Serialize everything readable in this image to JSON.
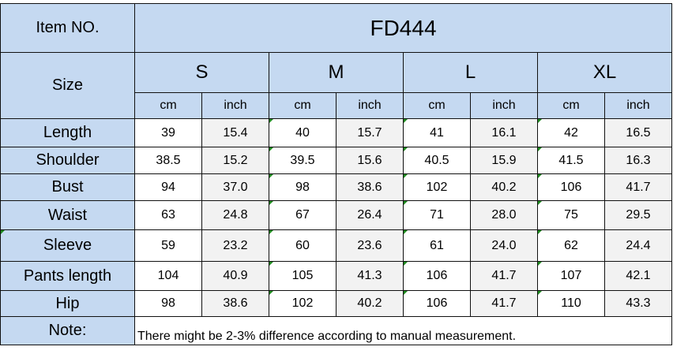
{
  "header": {
    "item_label": "Item NO.",
    "item_value": "FD444",
    "size_label": "Size"
  },
  "sizes": [
    "S",
    "M",
    "L",
    "XL"
  ],
  "units": [
    "cm",
    "inch",
    "cm",
    "inch",
    "cm",
    "inch",
    "cm",
    "inch"
  ],
  "rows": [
    {
      "label": "Length",
      "values": [
        "39",
        "15.4",
        "40",
        "15.7",
        "41",
        "16.1",
        "42",
        "16.5"
      ]
    },
    {
      "label": "Shoulder",
      "values": [
        "38.5",
        "15.2",
        "39.5",
        "15.6",
        "40.5",
        "15.9",
        "41.5",
        "16.3"
      ]
    },
    {
      "label": "Bust",
      "values": [
        "94",
        "37.0",
        "98",
        "38.6",
        "102",
        "40.2",
        "106",
        "41.7"
      ]
    },
    {
      "label": "Waist",
      "values": [
        "63",
        "24.8",
        "67",
        "26.4",
        "71",
        "28.0",
        "75",
        "29.5"
      ]
    },
    {
      "label": "Sleeve",
      "values": [
        "59",
        "23.2",
        "60",
        "23.6",
        "61",
        "24.0",
        "62",
        "24.4"
      ]
    },
    {
      "label": "Pants length",
      "values": [
        "104",
        "40.9",
        "105",
        "41.3",
        "106",
        "41.7",
        "107",
        "42.1"
      ]
    },
    {
      "label": "Hip",
      "values": [
        "98",
        "38.6",
        "102",
        "40.2",
        "106",
        "41.7",
        "110",
        "43.3"
      ]
    }
  ],
  "note": {
    "label": "Note:",
    "text": "There might be 2-3% difference according to manual measurement."
  }
}
